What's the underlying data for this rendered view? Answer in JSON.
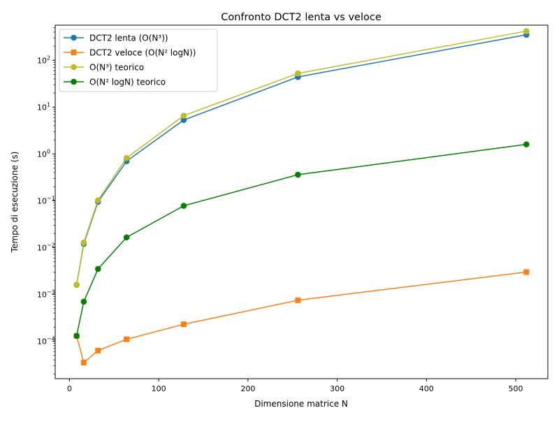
{
  "chart_data": {
    "type": "line",
    "title": "Confronto DCT2 lenta vs veloce",
    "xlabel": "Dimensione matrice N",
    "ylabel": "Tempo di esecuzione (s)",
    "xlim": [
      -16,
      536
    ],
    "ylim_log10": [
      -4.8,
      2.75
    ],
    "y_scale": "log",
    "grid": false,
    "legend_position": "top-left",
    "x_ticks": [
      0,
      100,
      200,
      300,
      400,
      500
    ],
    "y_ticks": [
      {
        "exp": -4,
        "label": "10",
        "sup": "−4"
      },
      {
        "exp": -3,
        "label": "10",
        "sup": "−3"
      },
      {
        "exp": -2,
        "label": "10",
        "sup": "−2"
      },
      {
        "exp": -1,
        "label": "10",
        "sup": "−1"
      },
      {
        "exp": 0,
        "label": "10",
        "sup": "0"
      },
      {
        "exp": 1,
        "label": "10",
        "sup": "1"
      },
      {
        "exp": 2,
        "label": "10",
        "sup": "2"
      }
    ],
    "x": [
      8,
      16,
      32,
      64,
      128,
      256,
      512
    ],
    "series": [
      {
        "name": "DCT2 lenta (O(N³))",
        "color": "#1f77b4",
        "marker": "circle",
        "values": [
          0.0016,
          0.012,
          0.095,
          0.7,
          5.3,
          44,
          350
        ]
      },
      {
        "name": "DCT2 veloce (O(N² logN))",
        "color": "#ff7f0e",
        "marker": "square",
        "values": [
          0.00013,
          3.5e-05,
          6.3e-05,
          0.00011,
          0.00023,
          0.00075,
          0.003
        ]
      },
      {
        "name": "O(N³) teorico",
        "color": "#bcbd22",
        "marker": "circle",
        "values": [
          0.0016,
          0.0128,
          0.1024,
          0.82,
          6.55,
          52.4,
          419
        ]
      },
      {
        "name": "O(N² logN) teorico",
        "color": "#008000",
        "marker": "circle",
        "values": [
          0.00013,
          0.0007,
          0.0035,
          0.0165,
          0.078,
          0.36,
          1.6
        ]
      }
    ]
  }
}
